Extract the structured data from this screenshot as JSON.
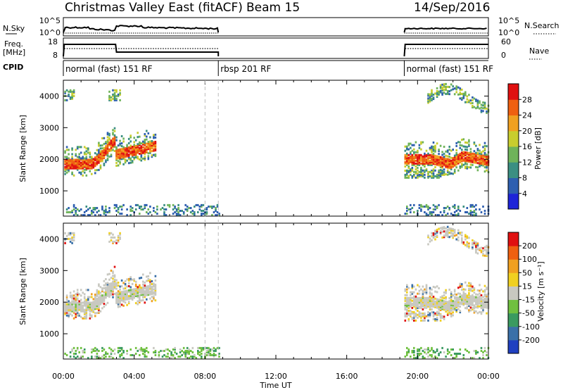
{
  "header": {
    "title": "Christmas Valley East (fitACF)",
    "beam": "Beam 15",
    "date": "14/Sep/2016"
  },
  "top_panel": {
    "left_label": "N.Sky",
    "right_label": "N.Search",
    "left_ticks": [
      "10^5",
      "10^0"
    ],
    "right_ticks": [
      "10^5",
      "10^0"
    ]
  },
  "freq_panel": {
    "left_label_1": "Freq.",
    "left_label_2": "[MHz]",
    "right_label": "Nave",
    "left_ticks": [
      "18",
      "8"
    ],
    "right_ticks": [
      "60",
      "0"
    ]
  },
  "cpid": {
    "label": "CPID",
    "segments": [
      {
        "text": "normal (fast) 151 RF",
        "start_hour": 0
      },
      {
        "text": "rbsp 201 RF",
        "start_hour": 8.75
      },
      {
        "text": "normal (fast) 151 RF",
        "start_hour": 19.25
      }
    ]
  },
  "chart_data": [
    {
      "type": "heatmap",
      "name": "power",
      "ylabel": "Slant Range [km]",
      "xlabel": "Time UT",
      "xlim_hours": [
        0,
        24
      ],
      "ylim": [
        200,
        4500
      ],
      "yticks": [
        "1000",
        "2000",
        "3000",
        "4000"
      ],
      "xticks": [
        "00:00",
        "04:00",
        "08:00",
        "12:00",
        "16:00",
        "20:00",
        "00:00"
      ],
      "colorbar_label": "Power [dB]",
      "colorbar_ticks": [
        "4",
        "8",
        "12",
        "16",
        "20",
        "24",
        "28"
      ],
      "colorbar_colors": [
        "#1e24d8",
        "#2e5fb0",
        "#3b8f82",
        "#6fb35a",
        "#c8cd2e",
        "#f0a020",
        "#ef6010",
        "#e01010"
      ],
      "data_gaps_hours": [
        [
          8.75,
          19.25
        ]
      ]
    },
    {
      "type": "heatmap",
      "name": "velocity",
      "ylabel": "Slant Range [km]",
      "xlabel": "Time UT",
      "xlim_hours": [
        0,
        24
      ],
      "ylim": [
        200,
        4500
      ],
      "yticks": [
        "1000",
        "2000",
        "3000",
        "4000"
      ],
      "xticks": [
        "00:00",
        "04:00",
        "08:00",
        "12:00",
        "16:00",
        "20:00",
        "00:00"
      ],
      "colorbar_label": "Velocity [m s⁻¹]",
      "colorbar_ticks": [
        "200",
        "100",
        "50",
        "15",
        "-15",
        "-50",
        "-100",
        "-200"
      ],
      "colorbar_colors": [
        "#2040c0",
        "#3a70a8",
        "#3a9a60",
        "#70c040",
        "#c8c8c0",
        "#f0d020",
        "#f0a020",
        "#ef6010",
        "#e01010"
      ],
      "data_gaps_hours": [
        [
          8.75,
          19.25
        ]
      ]
    }
  ],
  "time_axis_label": "Time UT"
}
